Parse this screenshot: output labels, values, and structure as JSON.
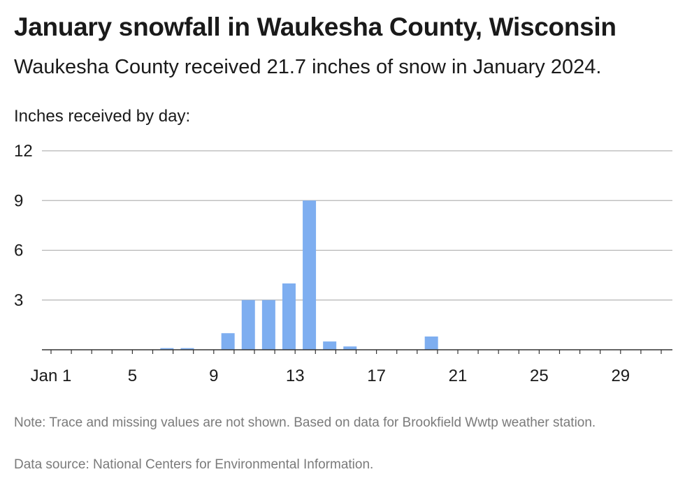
{
  "header": {
    "title": "January snowfall in Waukesha County, Wisconsin",
    "subtitle": "Waukesha County received 21.7 inches of snow in January 2024.",
    "unit_label": "Inches received by day:"
  },
  "footer": {
    "note": "Note: Trace and missing values are not shown. Based on data for Brookfield Wwtp weather station.",
    "source": "Data source: National Centers for Environmental Information."
  },
  "colors": {
    "bar": "#7eaef0",
    "grid": "#b5b5b5",
    "axis": "#333333"
  },
  "chart_data": {
    "type": "bar",
    "title": "January snowfall in Waukesha County, Wisconsin",
    "ylabel": "Inches received by day:",
    "ylim": [
      0,
      12
    ],
    "yticks": [
      3,
      6,
      9,
      12
    ],
    "x_range": [
      1,
      31
    ],
    "xticks": [
      {
        "value": 1,
        "label": "Jan 1"
      },
      {
        "value": 5,
        "label": "5"
      },
      {
        "value": 9,
        "label": "9"
      },
      {
        "value": 13,
        "label": "13"
      },
      {
        "value": 17,
        "label": "17"
      },
      {
        "value": 21,
        "label": "21"
      },
      {
        "value": 25,
        "label": "25"
      },
      {
        "value": 29,
        "label": "29"
      }
    ],
    "grid": true,
    "x": [
      6,
      7,
      9,
      10,
      11,
      12,
      13,
      14,
      15,
      19
    ],
    "values": [
      0.1,
      0.1,
      1.0,
      3.0,
      3.0,
      4.0,
      9.0,
      0.5,
      0.2,
      0.8
    ]
  }
}
